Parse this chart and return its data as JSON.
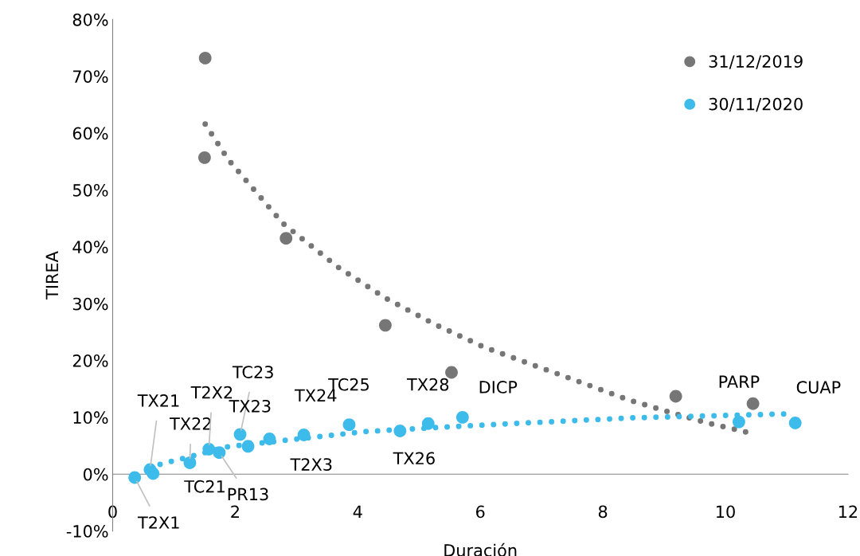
{
  "chart_data": {
    "type": "scatter",
    "xlabel": "Duración",
    "ylabel": "TIREA",
    "xlim": [
      0,
      12
    ],
    "xticks": [
      0,
      2,
      4,
      6,
      8,
      10,
      12
    ],
    "ylim": [
      -10,
      80
    ],
    "yticks": [
      {
        "value": -10,
        "label": "-10%"
      },
      {
        "value": 0,
        "label": "0%"
      },
      {
        "value": 10,
        "label": "10%"
      },
      {
        "value": 20,
        "label": "20%"
      },
      {
        "value": 30,
        "label": "30%"
      },
      {
        "value": 40,
        "label": "40%"
      },
      {
        "value": 50,
        "label": "50%"
      },
      {
        "value": 60,
        "label": "60%"
      },
      {
        "value": 70,
        "label": "70%"
      },
      {
        "value": 80,
        "label": "80%"
      }
    ],
    "grid": false,
    "legend": "top right",
    "marker": "circle",
    "series": [
      {
        "name": "31/12/2019",
        "color": "#767676",
        "x": [
          1.51,
          1.5,
          2.83,
          4.45,
          5.53,
          9.19,
          10.45
        ],
        "values": [
          73.2,
          55.7,
          41.5,
          26.2,
          17.9,
          13.7,
          12.4
        ]
      },
      {
        "name": "30/11/2020",
        "color": "#3dbbea",
        "x": [
          0.36,
          0.61,
          0.66,
          1.26,
          1.57,
          1.74,
          2.08,
          2.21,
          2.56,
          3.12,
          3.86,
          4.69,
          5.15,
          5.71,
          10.22,
          11.14
        ],
        "values": [
          -0.6,
          0.8,
          0.1,
          2.0,
          4.4,
          3.8,
          7.0,
          4.9,
          6.2,
          6.9,
          8.7,
          7.6,
          8.9,
          10.0,
          9.2,
          9.0
        ]
      },
      {
        "type": "line",
        "line_style": "dotted",
        "marker": "none",
        "color": "#767676",
        "x": [
          1.51,
          1.89,
          2.78,
          3.68,
          4.45,
          5.25,
          6.07,
          7.3,
          8.44,
          9.31,
          9.75,
          10.19,
          10.42
        ],
        "values": [
          61.6,
          55.3,
          44.1,
          36.4,
          31.0,
          26.4,
          22.3,
          17.5,
          13.0,
          10.2,
          8.9,
          7.8,
          7.2
        ]
      },
      {
        "type": "line",
        "line_style": "dotted",
        "marker": "none",
        "color": "#3dbbea",
        "x": [
          0.6,
          0.77,
          1.87,
          2.78,
          4.13,
          5.96,
          8.47,
          10.99
        ],
        "values": [
          0.9,
          1.7,
          4.8,
          5.9,
          7.5,
          8.6,
          9.9,
          10.6
        ]
      }
    ],
    "annotations": [
      {
        "text": "T2X1",
        "x": 0.36,
        "y": -0.6
      },
      {
        "text": "TX21",
        "x": 0.61,
        "y": 0.8
      },
      {
        "text": "TC21",
        "x": 0.66,
        "y": 0.1
      },
      {
        "text": "TX22",
        "x": 1.26,
        "y": 2.0
      },
      {
        "text": "T2X2",
        "x": 1.57,
        "y": 4.4
      },
      {
        "text": "PR13",
        "x": 1.74,
        "y": 3.8
      },
      {
        "text": "TC23",
        "x": 2.08,
        "y": 7.0
      },
      {
        "text": "TX23",
        "x": 2.21,
        "y": 4.9
      },
      {
        "text": "TX24",
        "x": 2.56,
        "y": 6.2
      },
      {
        "text": "T2X3",
        "x": 3.12,
        "y": 6.9
      },
      {
        "text": "TC25",
        "x": 3.86,
        "y": 8.7
      },
      {
        "text": "TX26",
        "x": 4.69,
        "y": 7.6
      },
      {
        "text": "TX28",
        "x": 5.15,
        "y": 8.9
      },
      {
        "text": "DICP",
        "x": 5.71,
        "y": 10.0
      },
      {
        "text": "PARP",
        "x": 10.22,
        "y": 9.2
      },
      {
        "text": "CUAP",
        "x": 11.14,
        "y": 9.0
      }
    ]
  }
}
